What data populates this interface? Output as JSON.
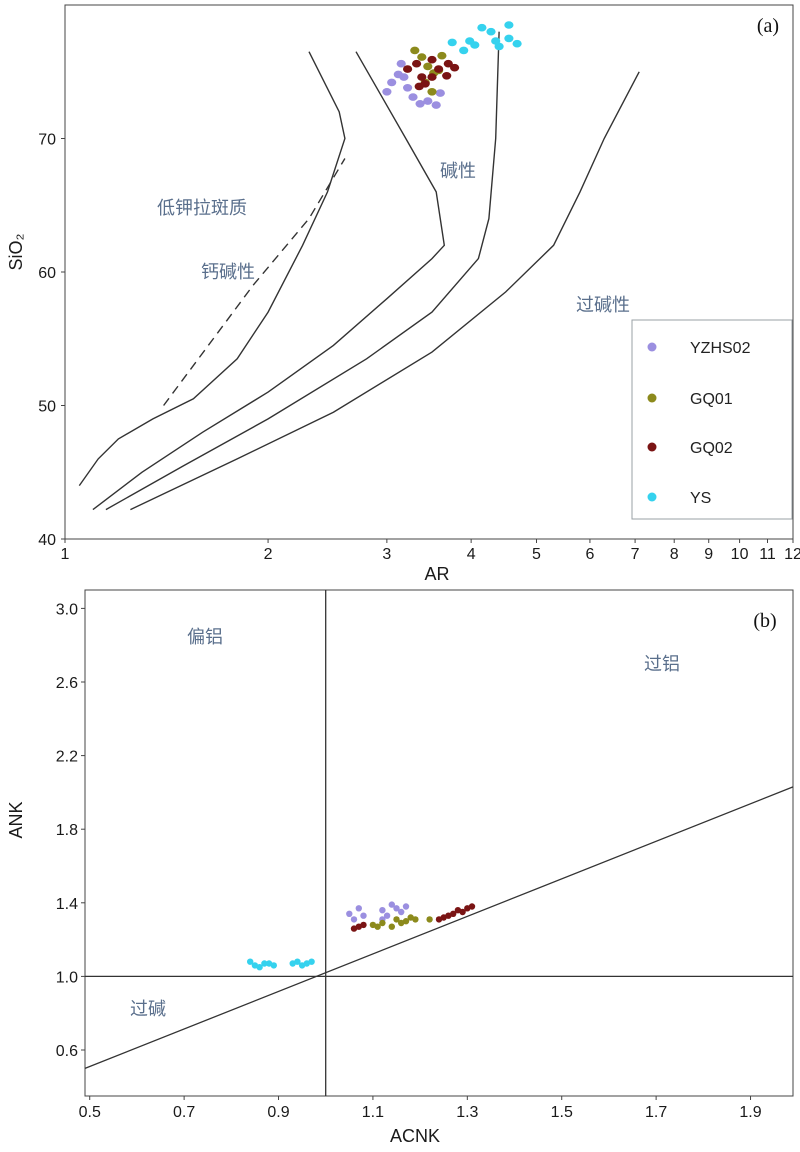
{
  "chart_data": [
    {
      "type": "scatter",
      "panel_label": "(a)",
      "xlabel": "AR",
      "ylabel": "SiO₂",
      "x_scale": "log",
      "xlim": [
        1,
        12
      ],
      "ylim": [
        40,
        80
      ],
      "x_ticks": [
        1,
        2,
        3,
        4,
        5,
        6,
        7,
        8,
        9,
        10,
        11,
        12
      ],
      "y_ticks": [
        40,
        50,
        60,
        70
      ],
      "region_labels": {
        "low_k": "低钾拉斑质",
        "calc_alkaline": "钙碱性",
        "alkaline": "碱性",
        "peralkaline": "过碱性"
      },
      "boundaries": [
        {
          "style": "solid",
          "points": [
            [
              1.05,
              44
            ],
            [
              1.12,
              46
            ],
            [
              1.2,
              47.5
            ],
            [
              1.35,
              49
            ],
            [
              1.55,
              50.5
            ],
            [
              1.8,
              53.5
            ],
            [
              2.0,
              57
            ],
            [
              2.25,
              62
            ],
            [
              2.45,
              66
            ],
            [
              2.6,
              70
            ],
            [
              2.55,
              72
            ],
            [
              2.3,
              76.5
            ]
          ]
        },
        {
          "style": "dashed",
          "points": [
            [
              1.4,
              50
            ],
            [
              1.9,
              59
            ],
            [
              2.3,
              64
            ],
            [
              2.6,
              68.5
            ]
          ]
        },
        {
          "style": "solid",
          "points": [
            [
              1.1,
              42.2
            ],
            [
              1.3,
              45
            ],
            [
              1.6,
              48
            ],
            [
              2.0,
              51
            ],
            [
              2.5,
              54.5
            ],
            [
              3.0,
              58
            ],
            [
              3.5,
              61
            ],
            [
              3.65,
              62
            ],
            [
              3.55,
              66
            ],
            [
              3.2,
              70
            ],
            [
              2.7,
              76.5
            ]
          ]
        },
        {
          "style": "solid",
          "points": [
            [
              1.15,
              42.2
            ],
            [
              1.5,
              45.5
            ],
            [
              2.0,
              49
            ],
            [
              2.8,
              53.5
            ],
            [
              3.5,
              57
            ],
            [
              4.1,
              61
            ],
            [
              4.25,
              64
            ],
            [
              4.35,
              70
            ],
            [
              4.4,
              78
            ]
          ]
        },
        {
          "style": "solid",
          "points": [
            [
              1.25,
              42.2
            ],
            [
              1.8,
              46
            ],
            [
              2.5,
              49.5
            ],
            [
              3.5,
              54
            ],
            [
              4.5,
              58.5
            ],
            [
              5.3,
              62
            ],
            [
              5.8,
              66
            ],
            [
              6.3,
              70
            ],
            [
              7.1,
              75
            ]
          ]
        }
      ],
      "legend": {
        "placement": "right",
        "entries": [
          {
            "label": "YZHS02",
            "color": "#9b8fe0"
          },
          {
            "label": "GQ01",
            "color": "#8c8a1c"
          },
          {
            "label": "GQ02",
            "color": "#7a1414"
          },
          {
            "label": "YS",
            "color": "#35d2ee"
          }
        ]
      },
      "series": [
        {
          "name": "YZHS02",
          "color": "#9b8fe0",
          "points": [
            [
              3.0,
              73.5
            ],
            [
              3.05,
              74.2
            ],
            [
              3.12,
              74.8
            ],
            [
              3.15,
              75.6
            ],
            [
              3.22,
              73.8
            ],
            [
              3.28,
              73.1
            ],
            [
              3.36,
              72.6
            ],
            [
              3.45,
              72.8
            ],
            [
              3.55,
              72.5
            ],
            [
              3.18,
              74.6
            ],
            [
              3.6,
              73.4
            ]
          ]
        },
        {
          "name": "GQ01",
          "color": "#8c8a1c",
          "points": [
            [
              3.3,
              76.6
            ],
            [
              3.38,
              76.1
            ],
            [
              3.45,
              75.4
            ],
            [
              3.52,
              74.9
            ],
            [
              3.58,
              75.1
            ],
            [
              3.42,
              74.2
            ],
            [
              3.5,
              73.5
            ],
            [
              3.62,
              76.2
            ]
          ]
        },
        {
          "name": "GQ02",
          "color": "#7a1414",
          "points": [
            [
              3.22,
              75.2
            ],
            [
              3.32,
              75.6
            ],
            [
              3.38,
              74.6
            ],
            [
              3.42,
              74.1
            ],
            [
              3.5,
              75.9
            ],
            [
              3.58,
              75.2
            ],
            [
              3.7,
              75.6
            ],
            [
              3.78,
              75.3
            ],
            [
              3.35,
              73.9
            ],
            [
              3.5,
              74.6
            ],
            [
              3.68,
              74.7
            ]
          ]
        },
        {
          "name": "YS",
          "color": "#35d2ee",
          "points": [
            [
              3.75,
              77.2
            ],
            [
              3.9,
              76.6
            ],
            [
              4.05,
              77.0
            ],
            [
              4.15,
              78.3
            ],
            [
              4.28,
              78.0
            ],
            [
              4.35,
              77.3
            ],
            [
              4.4,
              76.9
            ],
            [
              4.55,
              77.5
            ],
            [
              4.55,
              78.5
            ],
            [
              4.68,
              77.1
            ],
            [
              3.98,
              77.3
            ]
          ]
        }
      ]
    },
    {
      "type": "scatter",
      "panel_label": "(b)",
      "xlabel": "ACNK",
      "ylabel": "ANK",
      "xlim": [
        0.49,
        1.99
      ],
      "ylim": [
        0.35,
        3.1
      ],
      "x_ticks": [
        0.5,
        0.7,
        0.9,
        1.1,
        1.3,
        1.5,
        1.7,
        1.9
      ],
      "x_tick_labels": [
        "0.5",
        "0.7",
        "0.9",
        "1.1",
        "1.3",
        "1.5",
        "1.7",
        "1.9"
      ],
      "y_ticks": [
        0.6,
        1.0,
        1.4,
        1.8,
        2.2,
        2.6,
        3.0
      ],
      "y_tick_labels": [
        "0.6",
        "1.0",
        "1.4",
        "1.8",
        "2.2",
        "2.6",
        "3.0"
      ],
      "region_labels": {
        "metaluminous": "偏铝",
        "peraluminous": "过铝",
        "peralkaline": "过碱"
      },
      "reference_lines": [
        {
          "from": [
            0.49,
            1.0
          ],
          "to": [
            1.99,
            1.0
          ]
        },
        {
          "from": [
            1.0,
            0.35
          ],
          "to": [
            1.0,
            3.1
          ]
        },
        {
          "from": [
            0.49,
            0.5
          ],
          "to": [
            1.99,
            2.03
          ]
        }
      ],
      "series": [
        {
          "name": "YZHS02",
          "color": "#9b8fe0",
          "points": [
            [
              1.05,
              1.34
            ],
            [
              1.07,
              1.37
            ],
            [
              1.08,
              1.33
            ],
            [
              1.12,
              1.36
            ],
            [
              1.13,
              1.33
            ],
            [
              1.14,
              1.39
            ],
            [
              1.15,
              1.37
            ],
            [
              1.16,
              1.35
            ],
            [
              1.17,
              1.38
            ],
            [
              1.06,
              1.31
            ],
            [
              1.12,
              1.31
            ]
          ]
        },
        {
          "name": "GQ01",
          "color": "#8c8a1c",
          "points": [
            [
              1.1,
              1.28
            ],
            [
              1.12,
              1.29
            ],
            [
              1.14,
              1.27
            ],
            [
              1.15,
              1.31
            ],
            [
              1.16,
              1.29
            ],
            [
              1.17,
              1.3
            ],
            [
              1.18,
              1.32
            ],
            [
              1.19,
              1.31
            ],
            [
              1.22,
              1.31
            ],
            [
              1.11,
              1.27
            ]
          ]
        },
        {
          "name": "GQ02",
          "color": "#7a1414",
          "points": [
            [
              1.06,
              1.26
            ],
            [
              1.07,
              1.27
            ],
            [
              1.08,
              1.28
            ],
            [
              1.24,
              1.31
            ],
            [
              1.26,
              1.33
            ],
            [
              1.27,
              1.34
            ],
            [
              1.28,
              1.36
            ],
            [
              1.29,
              1.35
            ],
            [
              1.3,
              1.37
            ],
            [
              1.31,
              1.38
            ],
            [
              1.25,
              1.32
            ]
          ]
        },
        {
          "name": "YS",
          "color": "#35d2ee",
          "points": [
            [
              0.84,
              1.08
            ],
            [
              0.85,
              1.06
            ],
            [
              0.86,
              1.05
            ],
            [
              0.87,
              1.07
            ],
            [
              0.89,
              1.06
            ],
            [
              0.93,
              1.07
            ],
            [
              0.94,
              1.08
            ],
            [
              0.95,
              1.06
            ],
            [
              0.96,
              1.07
            ],
            [
              0.97,
              1.08
            ],
            [
              0.88,
              1.07
            ]
          ]
        }
      ]
    }
  ]
}
